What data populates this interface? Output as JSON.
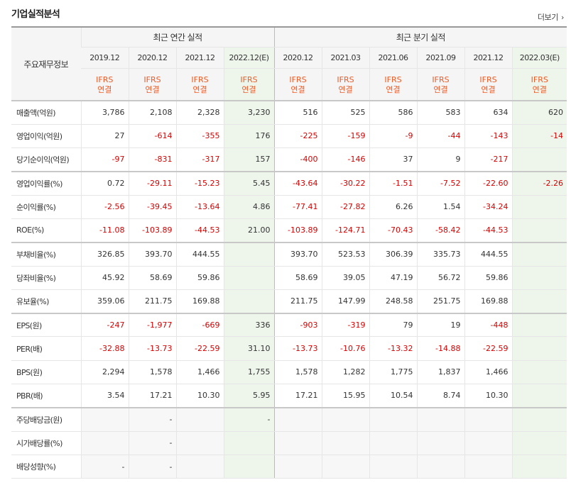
{
  "section_title": "기업실적분석",
  "more_link": "더보기",
  "more_icon": "chevron-right-icon",
  "row_header_label": "주요재무정보",
  "group_annual": "최근 연간 실적",
  "group_quarter": "최근 분기 실적",
  "periods": [
    "2019.12",
    "2020.12",
    "2021.12",
    "2022.12(E)",
    "2020.12",
    "2021.03",
    "2021.06",
    "2021.09",
    "2021.12",
    "2022.03(E)"
  ],
  "ifrs_line1": "IFRS",
  "ifrs_line2": "연결",
  "rows": [
    {
      "label": "매출액(억원)",
      "values": [
        "3,786",
        "2,108",
        "2,328",
        "3,230",
        "516",
        "525",
        "586",
        "583",
        "634",
        "620"
      ]
    },
    {
      "label": "영업이익(억원)",
      "values": [
        "27",
        "-614",
        "-355",
        "176",
        "-225",
        "-159",
        "-9",
        "-44",
        "-143",
        "-14"
      ]
    },
    {
      "label": "당기순이익(억원)",
      "values": [
        "-97",
        "-831",
        "-317",
        "157",
        "-400",
        "-146",
        "37",
        "9",
        "-217",
        ""
      ]
    },
    {
      "label": "영업이익률(%)",
      "values": [
        "0.72",
        "-29.11",
        "-15.23",
        "5.45",
        "-43.64",
        "-30.22",
        "-1.51",
        "-7.52",
        "-22.60",
        "-2.26"
      ]
    },
    {
      "label": "순이익률(%)",
      "values": [
        "-2.56",
        "-39.45",
        "-13.64",
        "4.86",
        "-77.41",
        "-27.82",
        "6.26",
        "1.54",
        "-34.24",
        ""
      ]
    },
    {
      "label": "ROE(%)",
      "values": [
        "-11.08",
        "-103.89",
        "-44.53",
        "21.00",
        "-103.89",
        "-124.71",
        "-70.43",
        "-58.42",
        "-44.53",
        ""
      ]
    },
    {
      "label": "부채비율(%)",
      "values": [
        "326.85",
        "393.70",
        "444.55",
        "",
        "393.70",
        "523.53",
        "306.39",
        "335.73",
        "444.55",
        ""
      ]
    },
    {
      "label": "당좌비율(%)",
      "values": [
        "45.92",
        "58.69",
        "59.86",
        "",
        "58.69",
        "39.05",
        "47.19",
        "56.72",
        "59.86",
        ""
      ]
    },
    {
      "label": "유보율(%)",
      "values": [
        "359.06",
        "211.75",
        "169.88",
        "",
        "211.75",
        "147.99",
        "248.58",
        "251.75",
        "169.88",
        ""
      ]
    },
    {
      "label": "EPS(원)",
      "values": [
        "-247",
        "-1,977",
        "-669",
        "336",
        "-903",
        "-319",
        "79",
        "19",
        "-448",
        ""
      ]
    },
    {
      "label": "PER(배)",
      "values": [
        "-32.88",
        "-13.73",
        "-22.59",
        "31.10",
        "-13.73",
        "-10.76",
        "-13.32",
        "-14.88",
        "-22.59",
        ""
      ]
    },
    {
      "label": "BPS(원)",
      "values": [
        "2,294",
        "1,578",
        "1,466",
        "1,755",
        "1,578",
        "1,282",
        "1,775",
        "1,837",
        "1,466",
        ""
      ]
    },
    {
      "label": "PBR(배)",
      "values": [
        "3.54",
        "17.21",
        "10.30",
        "5.95",
        "17.21",
        "15.95",
        "10.54",
        "8.74",
        "10.30",
        ""
      ]
    },
    {
      "label": "주당배당금(원)",
      "values": [
        "",
        "-",
        "",
        "-",
        "",
        "",
        "",
        "",
        "",
        ""
      ]
    },
    {
      "label": "시가배당률(%)",
      "values": [
        "",
        "-",
        "",
        "",
        "",
        "",
        "",
        "",
        "",
        ""
      ]
    },
    {
      "label": "배당성향(%)",
      "values": [
        "-",
        "-",
        "",
        "",
        "",
        "",
        "",
        "",
        "",
        ""
      ]
    }
  ],
  "colors": {
    "negative": "#d80000",
    "ifrs": "#f05a24",
    "estimate_bg": "#eef6ec"
  }
}
